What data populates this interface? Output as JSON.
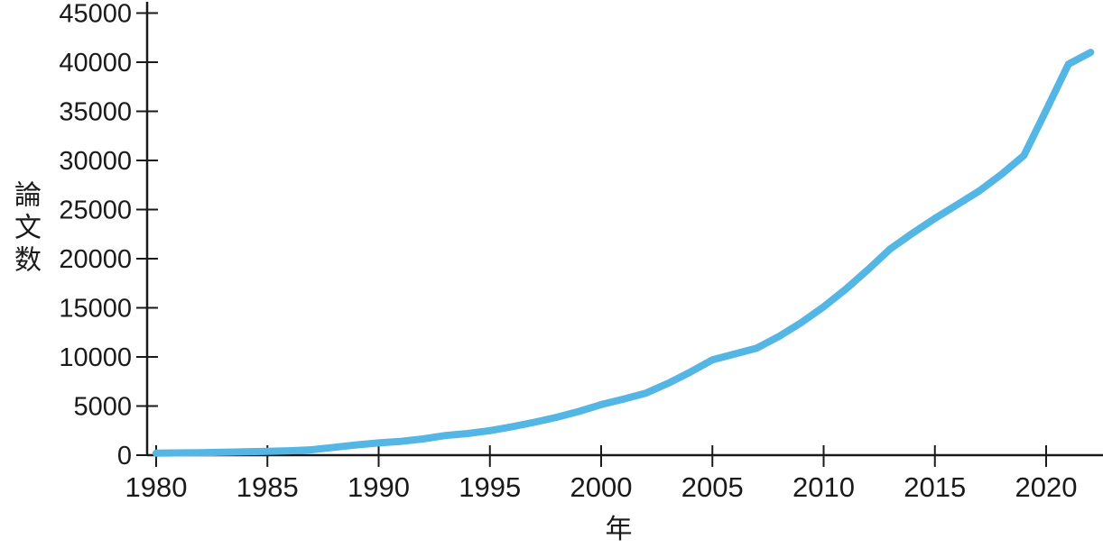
{
  "chart_data": {
    "type": "line",
    "title": "",
    "xlabel": "年",
    "ylabel": "論文数",
    "x": [
      1980,
      1981,
      1982,
      1983,
      1984,
      1985,
      1986,
      1987,
      1988,
      1989,
      1990,
      1991,
      1992,
      1993,
      1994,
      1995,
      1996,
      1997,
      1998,
      1999,
      2000,
      2001,
      2002,
      2003,
      2004,
      2005,
      2006,
      2007,
      2008,
      2009,
      2010,
      2011,
      2012,
      2013,
      2014,
      2015,
      2016,
      2017,
      2018,
      2019,
      2020,
      2021,
      2022
    ],
    "values": [
      200,
      230,
      260,
      300,
      340,
      390,
      450,
      550,
      800,
      1050,
      1250,
      1400,
      1650,
      2000,
      2200,
      2500,
      2900,
      3350,
      3850,
      4450,
      5150,
      5700,
      6300,
      7300,
      8450,
      9700,
      10300,
      10900,
      12100,
      13500,
      15100,
      16900,
      18900,
      21000,
      22600,
      24100,
      25500,
      26900,
      28600,
      30500,
      35100,
      39800,
      41000
    ],
    "xticks": [
      1980,
      1985,
      1990,
      1995,
      2000,
      2005,
      2010,
      2015,
      2020
    ],
    "x_tick_labels": [
      "1980",
      "1985",
      "1990",
      "1995",
      "2000",
      "2005",
      "2010",
      "2015",
      "2020"
    ],
    "yticks": [
      0,
      5000,
      10000,
      15000,
      20000,
      25000,
      30000,
      35000,
      40000,
      45000
    ],
    "y_tick_labels": [
      "0",
      "5000",
      "10000",
      "15000",
      "20000",
      "25000",
      "30000",
      "35000",
      "40000",
      "45000"
    ],
    "xlim": [
      1980,
      2022.6
    ],
    "ylim": [
      0,
      45000
    ],
    "grid": false,
    "legend_position": "none",
    "line_color": "#53B6E4",
    "axis_color": "#1a1a1a",
    "text_color": "#1a1a1a"
  }
}
